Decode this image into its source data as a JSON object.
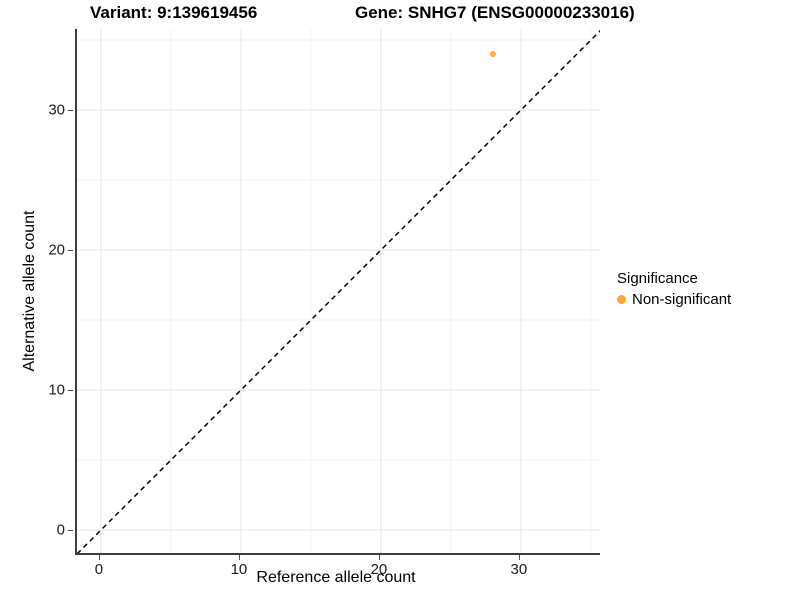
{
  "figure": {
    "title_variant": "Variant: 9:139619456",
    "title_gene": "Gene: SNHG7 (ENSG00000233016)"
  },
  "chart_data": {
    "type": "scatter",
    "title": "Variant: 9:139619456   Gene: SNHG7 (ENSG00000233016)",
    "xlabel": "Reference allele count",
    "ylabel": "Alternative allele count",
    "xlim": [
      -1.71,
      35.65
    ],
    "ylim": [
      -1.64,
      35.79
    ],
    "x_ticks": [
      0,
      10,
      20,
      30
    ],
    "y_ticks": [
      0,
      10,
      20,
      30
    ],
    "x_minor_ticks": [
      5,
      15,
      25,
      35
    ],
    "y_minor_ticks": [
      5,
      15,
      25,
      35
    ],
    "grid": "major+minor on white panel",
    "series": [
      {
        "name": "Non-significant",
        "color": "#FCA636",
        "points": [
          {
            "x": 28,
            "y": 34
          }
        ]
      }
    ],
    "reference_line": {
      "type": "identity y=x",
      "style": "dashed",
      "color": "#000000",
      "from": [
        -1.7,
        -1.7
      ],
      "to": [
        35.7,
        35.7
      ]
    },
    "legend": {
      "title": "Significance",
      "position": "right",
      "items": [
        {
          "label": "Non-significant",
          "color": "#FCA636"
        }
      ]
    }
  },
  "colors": {
    "grid_major": "#e6e6e6",
    "grid_minor": "#f2f2f2",
    "axis_line": "#3c3c3c",
    "point": "#FCA636"
  }
}
